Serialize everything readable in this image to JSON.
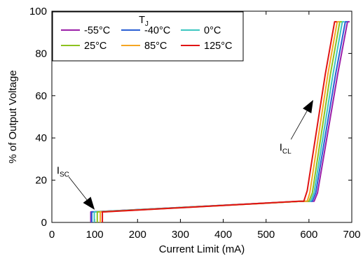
{
  "chart_data": {
    "type": "line",
    "xlabel": "Current Limit (mA)",
    "ylabel": "% of Output Voltage",
    "xlim": [
      0,
      700
    ],
    "ylim": [
      0,
      100
    ],
    "xticks": [
      0,
      100,
      200,
      300,
      400,
      500,
      600,
      700
    ],
    "yticks": [
      0,
      20,
      40,
      60,
      80,
      100
    ],
    "grid": false,
    "legend": {
      "title_main": "T",
      "title_sub": "J",
      "placement": "top-left"
    },
    "series": [
      {
        "name": "-55°C",
        "color": "#9b1fa8",
        "x": [
          91,
          91,
          97,
          582,
          612,
          620,
          667,
          690,
          695
        ],
        "y": [
          0,
          5,
          5,
          10,
          10,
          14,
          70,
          95,
          95
        ]
      },
      {
        "name": "-40°C",
        "color": "#2a5fd4",
        "x": [
          93,
          93,
          99,
          582,
          608,
          616,
          662,
          685,
          690
        ],
        "y": [
          0,
          5,
          5,
          10,
          10,
          14,
          70,
          95,
          95
        ]
      },
      {
        "name": "0°C",
        "color": "#3cc6c0",
        "x": [
          99,
          99,
          105,
          582,
          604,
          612,
          656,
          678,
          683
        ],
        "y": [
          0,
          5,
          5,
          10,
          10,
          14,
          70,
          95,
          95
        ]
      },
      {
        "name": "25°C",
        "color": "#8dc21f",
        "x": [
          106,
          106,
          112,
          582,
          600,
          608,
          650,
          672,
          677
        ],
        "y": [
          0,
          5,
          5,
          10,
          10,
          14,
          70,
          95,
          95
        ]
      },
      {
        "name": "85°C",
        "color": "#f5a623",
        "x": [
          113,
          113,
          119,
          582,
          596,
          602,
          644,
          666,
          671
        ],
        "y": [
          0,
          5,
          5,
          10,
          10,
          14,
          70,
          95,
          95
        ]
      },
      {
        "name": "125°C",
        "color": "#e01414",
        "x": [
          118,
          118,
          124,
          575,
          588,
          596,
          638,
          660,
          665
        ],
        "y": [
          0,
          5,
          5,
          10,
          10,
          15,
          70,
          95,
          95
        ]
      }
    ],
    "annotations": [
      {
        "main": "I",
        "sub": "SC",
        "label_x": 26,
        "label_y": 23,
        "arrow_tip_x": 100,
        "arrow_tip_y": 6
      },
      {
        "main": "I",
        "sub": "CL",
        "label_x": 545,
        "label_y": 34,
        "arrow_tip_x": 610,
        "arrow_tip_y": 58
      }
    ]
  }
}
